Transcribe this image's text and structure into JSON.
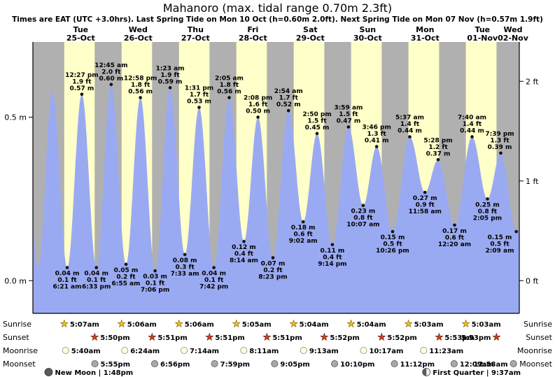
{
  "page": {
    "title": "Mahanoro (max. tidal range 0.70m 2.3ft)",
    "subtitle": "Times are EAT (UTC +3.0hrs). Last Spring Tide on Mon 10 Oct (h=0.60m 2.0ft). Next Spring Tide on Mon 07 Nov (h=0.57m 1.9ft)"
  },
  "colors": {
    "day_band": "#ffffc9",
    "night_band": "#b0b0b0",
    "tide_fill": "#9aaaf2",
    "day_label": "#dd0000",
    "dot": "#111111",
    "axis_line": "#000000",
    "sunrise_star_fill": "#f2c20a",
    "sunrise_star_stroke": "#7a5c00",
    "sunset_star_fill": "#cc4125",
    "sunset_star_stroke": "#5c1a00",
    "moonrise_fill": "#ffffd9",
    "moonrise_stroke": "#888888",
    "moonset_fill": "#a8a8a8",
    "moonset_stroke": "#555555",
    "moon_dark": "#5a5a5a",
    "moon_light": "#eeeeee"
  },
  "chart_data": {
    "type": "area",
    "title": "Mahanoro (max. tidal range 0.70m 2.3ft)",
    "ylim_m": [
      -0.1,
      0.73
    ],
    "y_axis_left": {
      "unit": "m",
      "ticks": [
        {
          "label": "0.0 m",
          "value": 0.0
        },
        {
          "label": "0.5 m",
          "value": 0.5
        }
      ]
    },
    "y_axis_right": {
      "unit": "ft",
      "ticks": [
        {
          "label": "0 ft",
          "value": 0.0
        },
        {
          "label": "1 ft",
          "value": 0.3048
        },
        {
          "label": "2 ft",
          "value": 0.6096
        }
      ]
    },
    "days": [
      {
        "day": 0,
        "dow": "Tue",
        "date": "25-Oct",
        "sunrise": "5:07am",
        "sunset": "5:50pm",
        "moonrise": "5:40am",
        "moonset": "5:55pm"
      },
      {
        "day": 1,
        "dow": "Wed",
        "date": "26-Oct",
        "sunrise": "5:06am",
        "sunset": "5:51pm",
        "moonrise": "6:24am",
        "moonset": "6:56pm"
      },
      {
        "day": 2,
        "dow": "Thu",
        "date": "27-Oct",
        "sunrise": "5:06am",
        "sunset": "5:51pm",
        "moonrise": "7:14am",
        "moonset": "7:59pm"
      },
      {
        "day": 3,
        "dow": "Fri",
        "date": "28-Oct",
        "sunrise": "5:05am",
        "sunset": "5:51pm",
        "moonrise": "8:11am",
        "moonset": "9:05pm"
      },
      {
        "day": 4,
        "dow": "Sat",
        "date": "29-Oct",
        "sunrise": "5:04am",
        "sunset": "5:52pm",
        "moonrise": "9:13am",
        "moonset": "10:10pm"
      },
      {
        "day": 5,
        "dow": "Sun",
        "date": "30-Oct",
        "sunrise": "5:04am",
        "sunset": "5:52pm",
        "moonrise": "10:17am",
        "moonset": "11:12pm"
      },
      {
        "day": 6,
        "dow": "Mon",
        "date": "31-Oct",
        "sunrise": "5:03am",
        "sunset": "5:53pm",
        "moonrise": "11:23am",
        "moonset": null
      },
      {
        "day": 7,
        "dow": "Tue",
        "date": "01-Nov",
        "sunrise": "5:03am",
        "sunset": "5:53pm",
        "moonrise": null,
        "moonset": "12:09am"
      },
      {
        "day": 8,
        "dow": "Wed",
        "date": "02-Nov",
        "sunrise": null,
        "sunset": null,
        "moonrise": null,
        "moonset": "12:58am"
      }
    ],
    "tides": [
      {
        "type": "low",
        "day": 0,
        "time": "6:21 am",
        "m": 0.04,
        "ft": 0.1
      },
      {
        "type": "high",
        "day": 0,
        "time": "12:27 pm",
        "m": 0.57,
        "ft": 1.9
      },
      {
        "type": "low",
        "day": 0,
        "time": "6:33 pm",
        "m": 0.04,
        "ft": 0.1
      },
      {
        "type": "high",
        "day": 1,
        "time": "12:45 am",
        "m": 0.6,
        "ft": 2.0
      },
      {
        "type": "low",
        "day": 1,
        "time": "6:55 am",
        "m": 0.05,
        "ft": 0.2
      },
      {
        "type": "high",
        "day": 1,
        "time": "12:58 pm",
        "m": 0.56,
        "ft": 1.8
      },
      {
        "type": "low",
        "day": 1,
        "time": "7:06 pm",
        "m": 0.03,
        "ft": 0.1
      },
      {
        "type": "high",
        "day": 2,
        "time": "1:23 am",
        "m": 0.59,
        "ft": 1.9
      },
      {
        "type": "low",
        "day": 2,
        "time": "7:33 am",
        "m": 0.08,
        "ft": 0.3
      },
      {
        "type": "high",
        "day": 2,
        "time": "1:31 pm",
        "m": 0.53,
        "ft": 1.7
      },
      {
        "type": "low",
        "day": 2,
        "time": "7:42 pm",
        "m": 0.04,
        "ft": 0.1
      },
      {
        "type": "high",
        "day": 3,
        "time": "2:05 am",
        "m": 0.56,
        "ft": 1.8
      },
      {
        "type": "low",
        "day": 3,
        "time": "8:14 am",
        "m": 0.12,
        "ft": 0.4
      },
      {
        "type": "high",
        "day": 3,
        "time": "2:08 pm",
        "m": 0.5,
        "ft": 1.6
      },
      {
        "type": "low",
        "day": 3,
        "time": "8:23 pm",
        "m": 0.07,
        "ft": 0.2
      },
      {
        "type": "high",
        "day": 4,
        "time": "2:54 am",
        "m": 0.52,
        "ft": 1.7
      },
      {
        "type": "low",
        "day": 4,
        "time": "9:02 am",
        "m": 0.18,
        "ft": 0.6
      },
      {
        "type": "high",
        "day": 4,
        "time": "2:50 pm",
        "m": 0.45,
        "ft": 1.5
      },
      {
        "type": "low",
        "day": 4,
        "time": "9:14 pm",
        "m": 0.11,
        "ft": 0.4
      },
      {
        "type": "high",
        "day": 5,
        "time": "3:59 am",
        "m": 0.47,
        "ft": 1.5
      },
      {
        "type": "low",
        "day": 5,
        "time": "10:07 am",
        "m": 0.23,
        "ft": 0.8
      },
      {
        "type": "high",
        "day": 5,
        "time": "3:46 pm",
        "m": 0.41,
        "ft": 1.3
      },
      {
        "type": "low",
        "day": 5,
        "time": "10:26 pm",
        "m": 0.15,
        "ft": 0.5
      },
      {
        "type": "high",
        "day": 6,
        "time": "5:37 am",
        "m": 0.44,
        "ft": 1.4
      },
      {
        "type": "low",
        "day": 6,
        "time": "11:58 am",
        "m": 0.27,
        "ft": 0.9
      },
      {
        "type": "high",
        "day": 6,
        "time": "5:28 pm",
        "m": 0.37,
        "ft": 1.2
      },
      {
        "type": "low",
        "day": 7,
        "time": "12:20 am",
        "m": 0.17,
        "ft": 0.6
      },
      {
        "type": "high",
        "day": 7,
        "time": "7:40 am",
        "m": 0.44,
        "ft": 1.4
      },
      {
        "type": "low",
        "day": 7,
        "time": "2:05 pm",
        "m": 0.25,
        "ft": 0.8
      },
      {
        "type": "high",
        "day": 7,
        "time": "7:39 pm",
        "m": 0.39,
        "ft": 1.3
      },
      {
        "type": "low",
        "day": 8,
        "time": "2:09 am",
        "m": 0.15,
        "ft": 0.5
      }
    ],
    "edge_curve_estimates": [
      {
        "day": -1,
        "time": "12:10 pm",
        "m": 0.55
      },
      {
        "day": -1,
        "time": "6:10 pm",
        "m": 0.04
      },
      {
        "day": 0,
        "time": "12:10 am",
        "m": 0.58
      },
      {
        "day": 8,
        "time": "9:45 am",
        "m": 0.44
      }
    ]
  },
  "astro": {
    "row_labels": {
      "sunrise": "Sunrise",
      "sunset": "Sunset",
      "moonrise": "Moonrise",
      "moonset": "Moonset"
    },
    "moon_phases": [
      {
        "name": "New Moon",
        "time": "1:48pm",
        "day": 0,
        "phase": "new"
      },
      {
        "name": "First Quarter",
        "time": "9:37am",
        "day": 7,
        "phase": "first_quarter"
      }
    ]
  }
}
